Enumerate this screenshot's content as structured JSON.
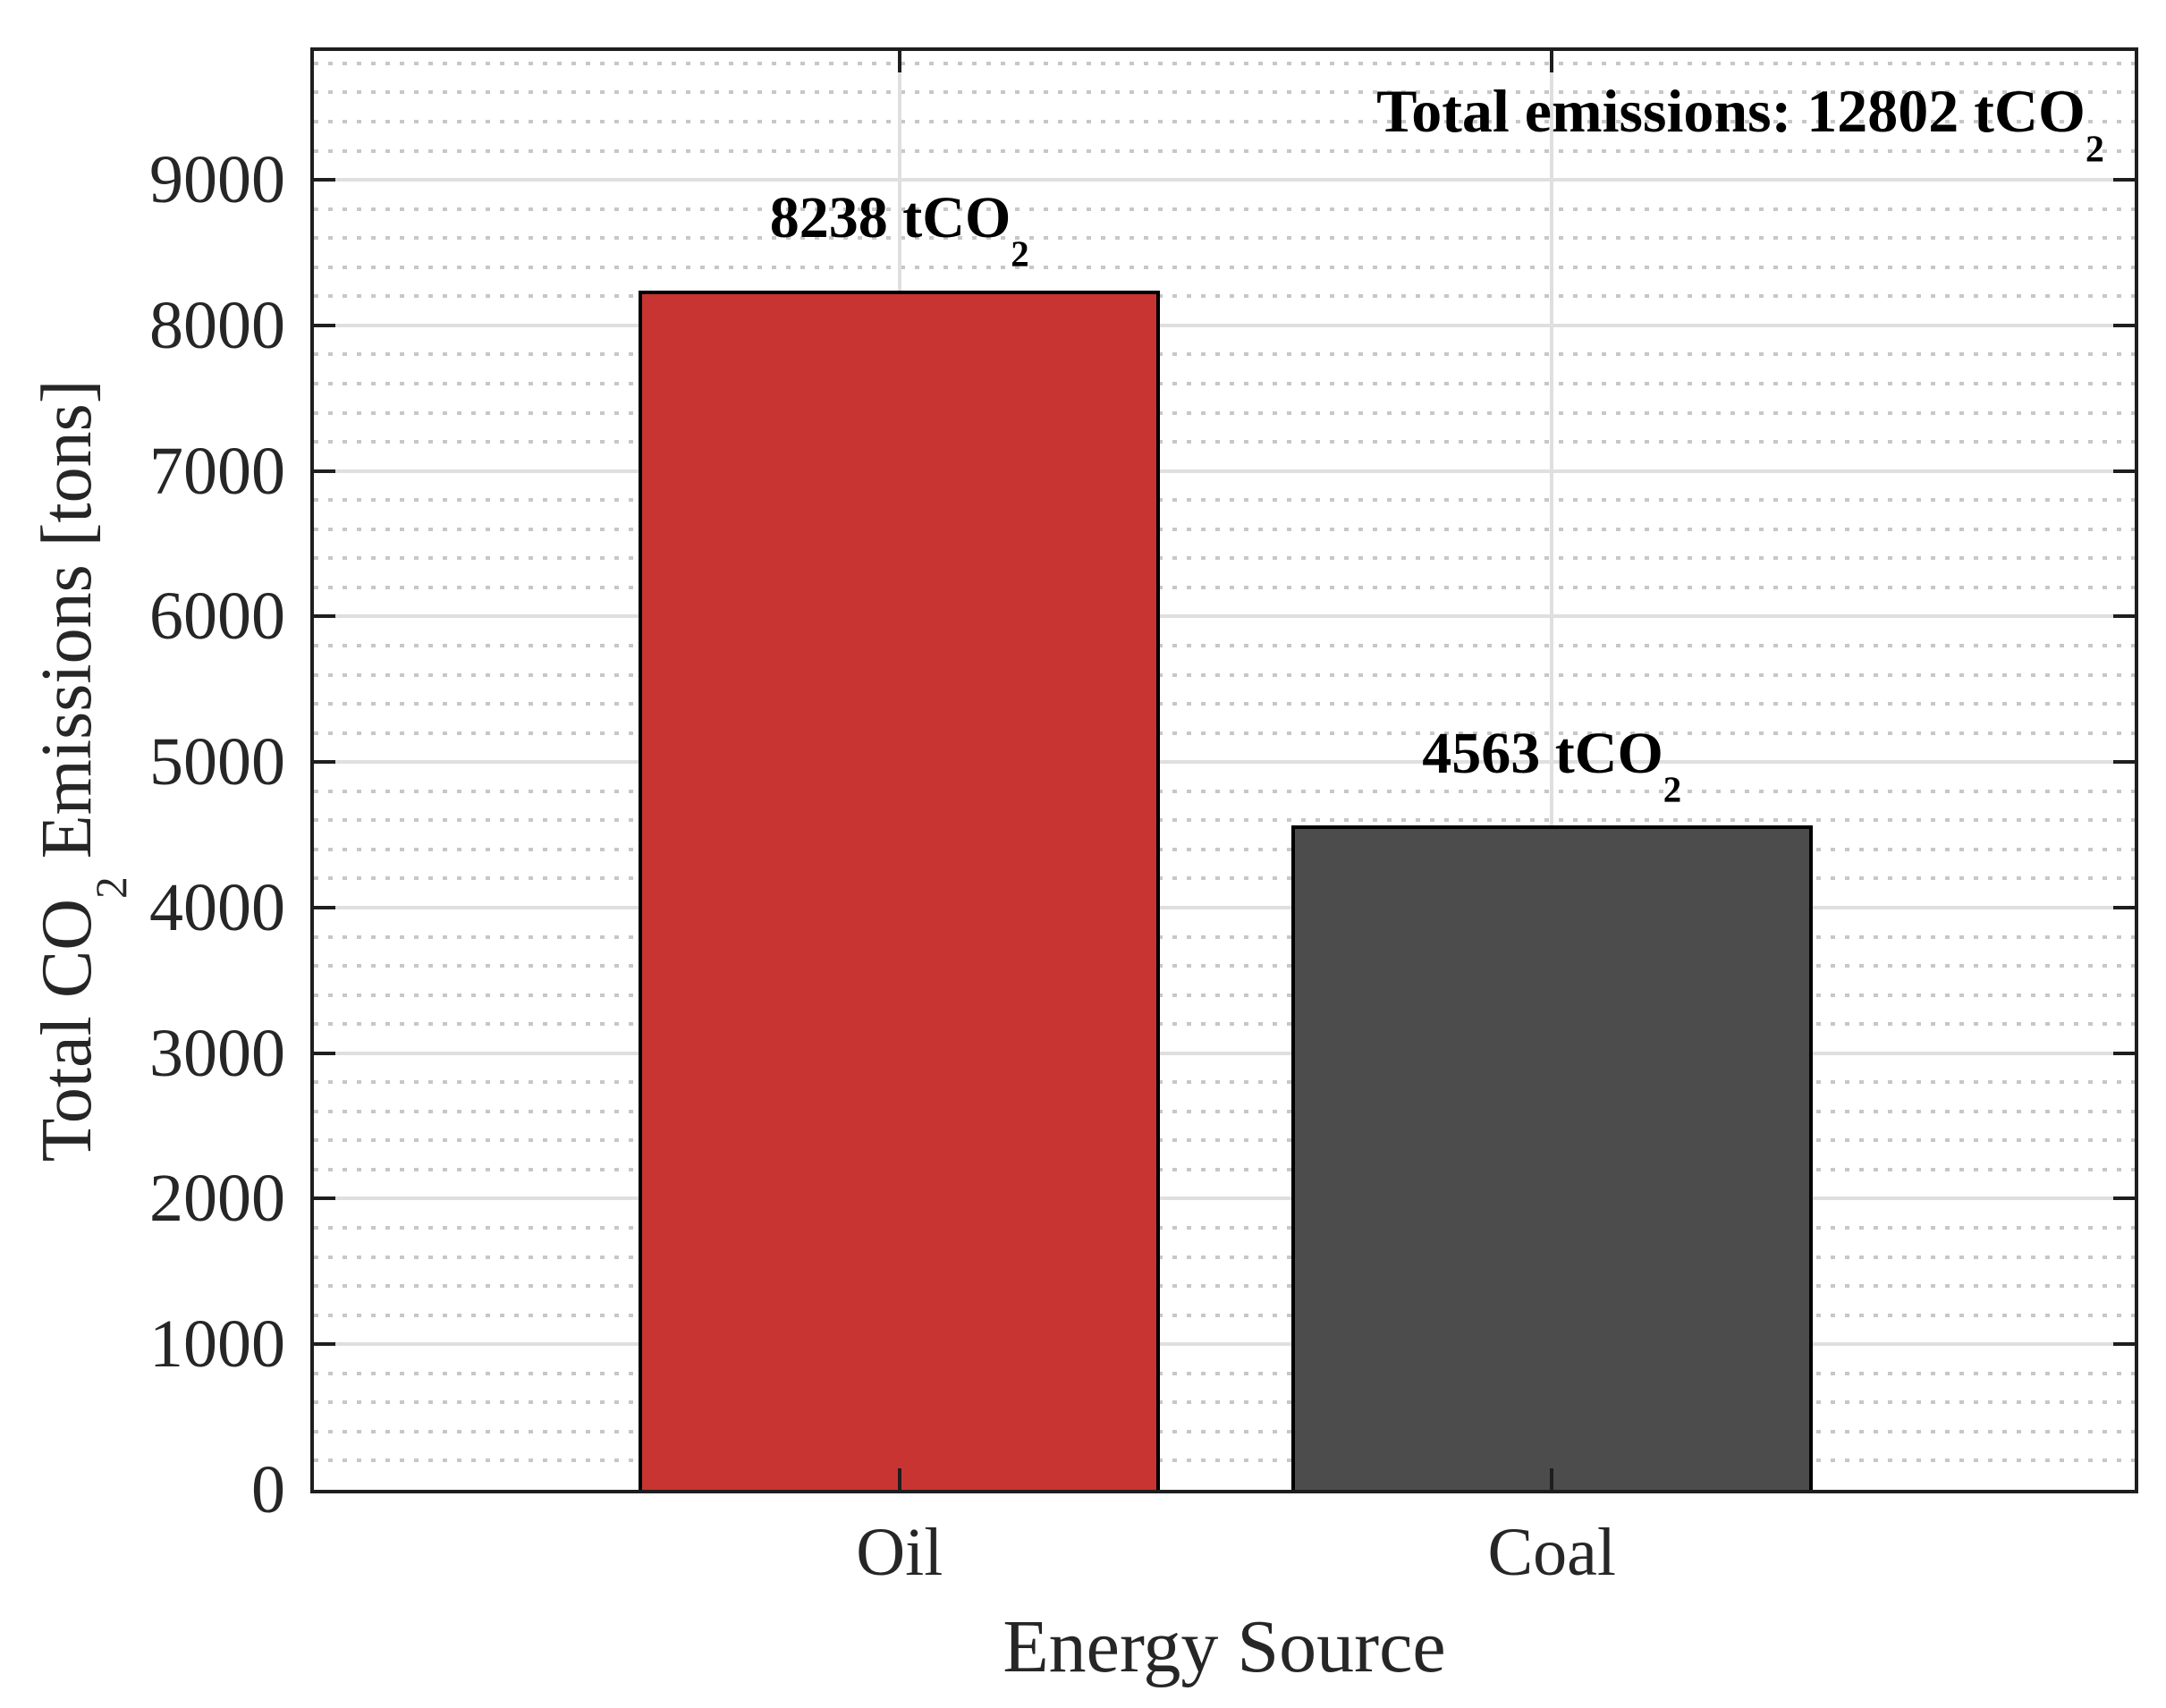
{
  "chart_data": {
    "type": "bar",
    "categories": [
      "Oil",
      "Coal"
    ],
    "values": [
      8238,
      4563
    ],
    "bar_colors": [
      "#C83432",
      "#4C4C4C"
    ],
    "value_label_unit": {
      "text": " tCO",
      "sub": "2"
    },
    "xlabel": "Energy Source",
    "ylabel": {
      "pre": "Total CO",
      "sub": "2",
      "post": " Emissions [tons]"
    },
    "annotation": {
      "text": "Total emissions: 12802 tCO",
      "sub": "2"
    },
    "ylim": [
      0,
      9885.6
    ],
    "yticks": [
      0,
      1000,
      2000,
      3000,
      4000,
      5000,
      6000,
      7000,
      8000,
      9000
    ],
    "y_minor_step": 200,
    "grid": {
      "y_major": "solid",
      "y_minor": "dotted",
      "x_vertical_at_category_centers": "solid"
    },
    "legend": null,
    "bar_centers_frac": [
      0.3216,
      0.6799
    ],
    "bar_width_frac": 0.2863,
    "colors": {
      "grid_major": "#DFDFDF",
      "grid_minor": "#C7C7C7",
      "axis": "#1E1E1E",
      "label_text": "#262626",
      "value_text": "#000000",
      "background": "#FFFFFF"
    }
  }
}
